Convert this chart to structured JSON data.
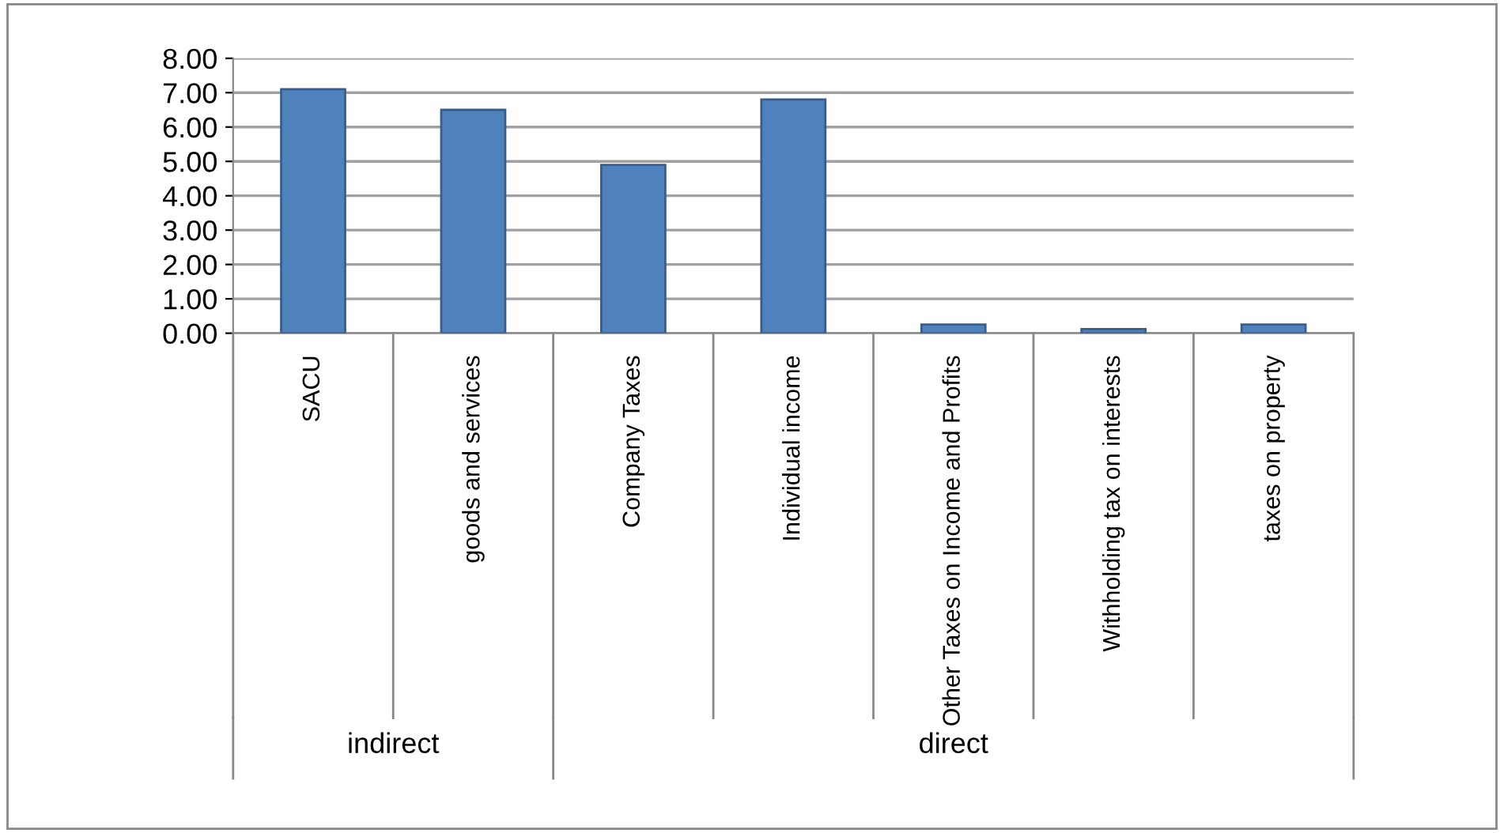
{
  "chart_data": {
    "type": "bar",
    "categories": [
      "SACU",
      "goods and services",
      "Company Taxes",
      "Individual income",
      "Other Taxes on Income and Profits",
      "Withholding tax on interests",
      "taxes on property"
    ],
    "values": [
      7.1,
      6.5,
      4.9,
      6.8,
      0.25,
      0.12,
      0.25
    ],
    "color": "#4f81bd",
    "ylim": [
      0,
      8
    ],
    "yticks": [
      {
        "value": 0,
        "label": "0.00"
      },
      {
        "value": 1,
        "label": "1.00"
      },
      {
        "value": 2,
        "label": "2.00"
      },
      {
        "value": 3,
        "label": "3.00"
      },
      {
        "value": 4,
        "label": "4.00"
      },
      {
        "value": 5,
        "label": "5.00"
      },
      {
        "value": 6,
        "label": "6.00"
      },
      {
        "value": 7,
        "label": "7.00"
      },
      {
        "value": 8,
        "label": "8.00"
      }
    ],
    "grid": "y",
    "annotations": [
      "indirect",
      "direct"
    ]
  }
}
